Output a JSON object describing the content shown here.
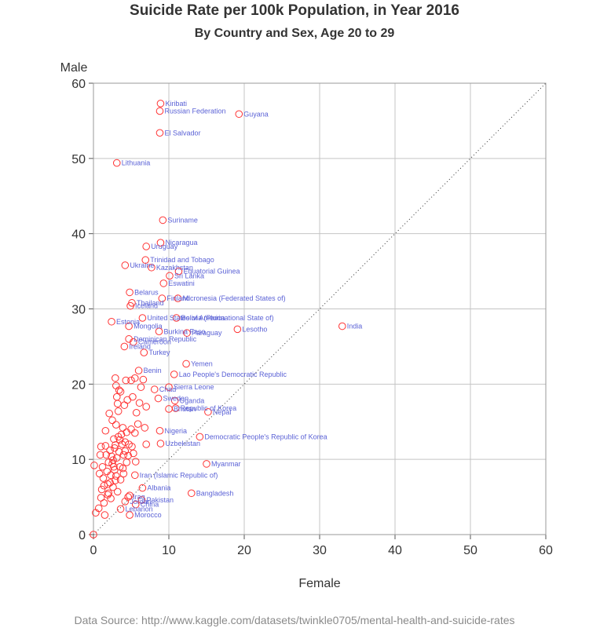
{
  "chart_data": {
    "type": "scatter",
    "title": "Suicide Rate per 100k Population, in Year 2016",
    "subtitle": "By Country and Sex, Age 20 to 29",
    "xlabel": "Female",
    "ylabel": "Male",
    "xlim": [
      0,
      60
    ],
    "ylim": [
      0,
      60
    ],
    "xticks": [
      0,
      10,
      20,
      30,
      40,
      50,
      60
    ],
    "yticks": [
      0,
      10,
      20,
      30,
      40,
      50,
      60
    ],
    "grid": true,
    "reference_line": "y = x (dotted)",
    "marker_color": "#ff3333",
    "label_color": "#5b62d6",
    "source": "Data Source:  http://www.kaggle.com/datasets/twinkle0705/mental-health-and-suicide-rates",
    "labeled_points": [
      {
        "x": 8.9,
        "y": 57.3,
        "label": "Kiribati"
      },
      {
        "x": 8.8,
        "y": 56.3,
        "label": "Russian Federation"
      },
      {
        "x": 19.3,
        "y": 55.9,
        "label": "Guyana"
      },
      {
        "x": 8.8,
        "y": 53.4,
        "label": "El Salvador"
      },
      {
        "x": 3.1,
        "y": 49.4,
        "label": "Lithuania"
      },
      {
        "x": 9.2,
        "y": 41.8,
        "label": "Suriname"
      },
      {
        "x": 8.9,
        "y": 38.8,
        "label": "Nicaragua"
      },
      {
        "x": 7.0,
        "y": 38.3,
        "label": "Uruguay"
      },
      {
        "x": 6.9,
        "y": 36.5,
        "label": "Trinidad and Tobago"
      },
      {
        "x": 7.7,
        "y": 35.5,
        "label": "Kazakhstan"
      },
      {
        "x": 4.2,
        "y": 35.8,
        "label": "Ukraine"
      },
      {
        "x": 11.3,
        "y": 35.0,
        "label": "Equatorial Guinea"
      },
      {
        "x": 10.1,
        "y": 34.4,
        "label": "Sri Lanka"
      },
      {
        "x": 9.3,
        "y": 33.4,
        "label": "Eswatini"
      },
      {
        "x": 4.8,
        "y": 32.2,
        "label": "Belarus"
      },
      {
        "x": 9.1,
        "y": 31.4,
        "label": "Finland"
      },
      {
        "x": 11.2,
        "y": 31.4,
        "label": "Micronesia (Federated States of)"
      },
      {
        "x": 5.1,
        "y": 30.8,
        "label": "Thailand"
      },
      {
        "x": 4.9,
        "y": 30.4,
        "label": "Iceland"
      },
      {
        "x": 6.5,
        "y": 28.8,
        "label": "United States of America"
      },
      {
        "x": 11.0,
        "y": 28.8,
        "label": "Bolivia (Plurinational State of)"
      },
      {
        "x": 2.4,
        "y": 28.3,
        "label": "Estonia"
      },
      {
        "x": 33.0,
        "y": 27.7,
        "label": "India"
      },
      {
        "x": 4.7,
        "y": 27.7,
        "label": "Mongolia"
      },
      {
        "x": 19.1,
        "y": 27.3,
        "label": "Lesotho"
      },
      {
        "x": 8.7,
        "y": 27.0,
        "label": "Burkina Faso"
      },
      {
        "x": 12.4,
        "y": 26.8,
        "label": "Paraguay"
      },
      {
        "x": 4.7,
        "y": 26.0,
        "label": "Dominican Republic"
      },
      {
        "x": 5.3,
        "y": 25.6,
        "label": "Cameroon"
      },
      {
        "x": 4.1,
        "y": 25.0,
        "label": "Ireland"
      },
      {
        "x": 6.7,
        "y": 24.2,
        "label": "Turkey"
      },
      {
        "x": 12.3,
        "y": 22.7,
        "label": "Yemen"
      },
      {
        "x": 6.0,
        "y": 21.8,
        "label": "Benin"
      },
      {
        "x": 10.7,
        "y": 21.3,
        "label": "Lao People's Democratic Republic"
      },
      {
        "x": 10.0,
        "y": 19.6,
        "label": "Sierra Leone"
      },
      {
        "x": 8.1,
        "y": 19.3,
        "label": "Chad"
      },
      {
        "x": 8.6,
        "y": 18.1,
        "label": "Sweden"
      },
      {
        "x": 10.8,
        "y": 17.8,
        "label": "Uganda"
      },
      {
        "x": 10.9,
        "y": 16.8,
        "label": "Republic of Korea"
      },
      {
        "x": 10.0,
        "y": 16.7,
        "label": "Bhutan"
      },
      {
        "x": 15.2,
        "y": 16.3,
        "label": "Nepal"
      },
      {
        "x": 8.8,
        "y": 13.8,
        "label": "Nigeria"
      },
      {
        "x": 14.1,
        "y": 13.0,
        "label": "Democratic People's Republic of Korea"
      },
      {
        "x": 8.9,
        "y": 12.1,
        "label": "Uzbekistan"
      },
      {
        "x": 15.0,
        "y": 9.4,
        "label": "Myanmar"
      },
      {
        "x": 5.5,
        "y": 7.9,
        "label": "Iran (Islamic Republic of)"
      },
      {
        "x": 6.5,
        "y": 6.2,
        "label": "Albania"
      },
      {
        "x": 13.0,
        "y": 5.5,
        "label": "Bangladesh"
      },
      {
        "x": 4.6,
        "y": 5.0,
        "label": "Iraq"
      },
      {
        "x": 6.4,
        "y": 4.6,
        "label": "Pakistan"
      },
      {
        "x": 4.2,
        "y": 4.4,
        "label": "Jordan"
      },
      {
        "x": 5.6,
        "y": 4.0,
        "label": "China"
      },
      {
        "x": 3.6,
        "y": 3.4,
        "label": "Lebanon"
      },
      {
        "x": 4.8,
        "y": 2.6,
        "label": "Morocco"
      }
    ],
    "unlabeled_points": [
      {
        "x": 0.0,
        "y": 0.0
      },
      {
        "x": 0.1,
        "y": 9.2
      },
      {
        "x": 0.3,
        "y": 2.9
      },
      {
        "x": 0.7,
        "y": 3.5
      },
      {
        "x": 0.8,
        "y": 8.1
      },
      {
        "x": 0.9,
        "y": 10.6
      },
      {
        "x": 1.0,
        "y": 11.7
      },
      {
        "x": 1.0,
        "y": 4.9
      },
      {
        "x": 1.1,
        "y": 6.0
      },
      {
        "x": 1.2,
        "y": 9.0
      },
      {
        "x": 1.3,
        "y": 7.5
      },
      {
        "x": 1.4,
        "y": 4.2
      },
      {
        "x": 1.5,
        "y": 2.6
      },
      {
        "x": 1.6,
        "y": 13.8
      },
      {
        "x": 1.6,
        "y": 11.8
      },
      {
        "x": 1.7,
        "y": 10.6
      },
      {
        "x": 1.8,
        "y": 8.4
      },
      {
        "x": 1.9,
        "y": 6.7
      },
      {
        "x": 2.0,
        "y": 5.5
      },
      {
        "x": 2.0,
        "y": 9.6
      },
      {
        "x": 2.1,
        "y": 16.1
      },
      {
        "x": 2.2,
        "y": 11.2
      },
      {
        "x": 2.3,
        "y": 7.9
      },
      {
        "x": 2.3,
        "y": 4.8
      },
      {
        "x": 2.4,
        "y": 10.4
      },
      {
        "x": 2.5,
        "y": 15.2
      },
      {
        "x": 2.5,
        "y": 9.4
      },
      {
        "x": 2.6,
        "y": 6.3
      },
      {
        "x": 2.7,
        "y": 12.7
      },
      {
        "x": 2.8,
        "y": 11.5
      },
      {
        "x": 2.8,
        "y": 8.6
      },
      {
        "x": 2.9,
        "y": 20.8
      },
      {
        "x": 2.9,
        "y": 7.2
      },
      {
        "x": 3.0,
        "y": 19.8
      },
      {
        "x": 3.0,
        "y": 14.6
      },
      {
        "x": 3.1,
        "y": 10.2
      },
      {
        "x": 3.1,
        "y": 18.3
      },
      {
        "x": 3.2,
        "y": 17.4
      },
      {
        "x": 3.2,
        "y": 5.7
      },
      {
        "x": 3.3,
        "y": 13.0
      },
      {
        "x": 3.3,
        "y": 16.4
      },
      {
        "x": 3.4,
        "y": 19.2
      },
      {
        "x": 3.4,
        "y": 11.0
      },
      {
        "x": 3.5,
        "y": 9.0
      },
      {
        "x": 3.6,
        "y": 7.3
      },
      {
        "x": 3.6,
        "y": 19.0
      },
      {
        "x": 3.7,
        "y": 13.3
      },
      {
        "x": 3.8,
        "y": 12.0
      },
      {
        "x": 3.9,
        "y": 14.2
      },
      {
        "x": 4.0,
        "y": 10.6
      },
      {
        "x": 4.0,
        "y": 8.1
      },
      {
        "x": 4.1,
        "y": 17.2
      },
      {
        "x": 4.2,
        "y": 12.3
      },
      {
        "x": 4.2,
        "y": 11.1
      },
      {
        "x": 4.3,
        "y": 20.5
      },
      {
        "x": 4.4,
        "y": 13.6
      },
      {
        "x": 4.5,
        "y": 17.9
      },
      {
        "x": 4.6,
        "y": 10.5
      },
      {
        "x": 4.7,
        "y": 12.0
      },
      {
        "x": 4.8,
        "y": 5.2
      },
      {
        "x": 5.0,
        "y": 20.5
      },
      {
        "x": 5.0,
        "y": 14.0
      },
      {
        "x": 5.1,
        "y": 11.7
      },
      {
        "x": 5.2,
        "y": 18.3
      },
      {
        "x": 5.3,
        "y": 10.8
      },
      {
        "x": 5.5,
        "y": 20.8
      },
      {
        "x": 5.6,
        "y": 9.7
      },
      {
        "x": 5.7,
        "y": 16.2
      },
      {
        "x": 5.9,
        "y": 14.7
      },
      {
        "x": 6.1,
        "y": 17.5
      },
      {
        "x": 6.3,
        "y": 19.6
      },
      {
        "x": 6.6,
        "y": 20.6
      },
      {
        "x": 6.8,
        "y": 14.2
      },
      {
        "x": 7.0,
        "y": 17.0
      },
      {
        "x": 7.0,
        "y": 12.0
      },
      {
        "x": 3.9,
        "y": 8.8
      },
      {
        "x": 2.6,
        "y": 9.9
      },
      {
        "x": 1.9,
        "y": 5.3
      },
      {
        "x": 2.9,
        "y": 11.9
      },
      {
        "x": 3.5,
        "y": 12.6
      },
      {
        "x": 4.4,
        "y": 9.6
      },
      {
        "x": 1.4,
        "y": 6.5
      },
      {
        "x": 2.2,
        "y": 6.9
      },
      {
        "x": 3.0,
        "y": 7.8
      },
      {
        "x": 5.5,
        "y": 13.5
      },
      {
        "x": 2.7,
        "y": 9.0
      }
    ]
  }
}
